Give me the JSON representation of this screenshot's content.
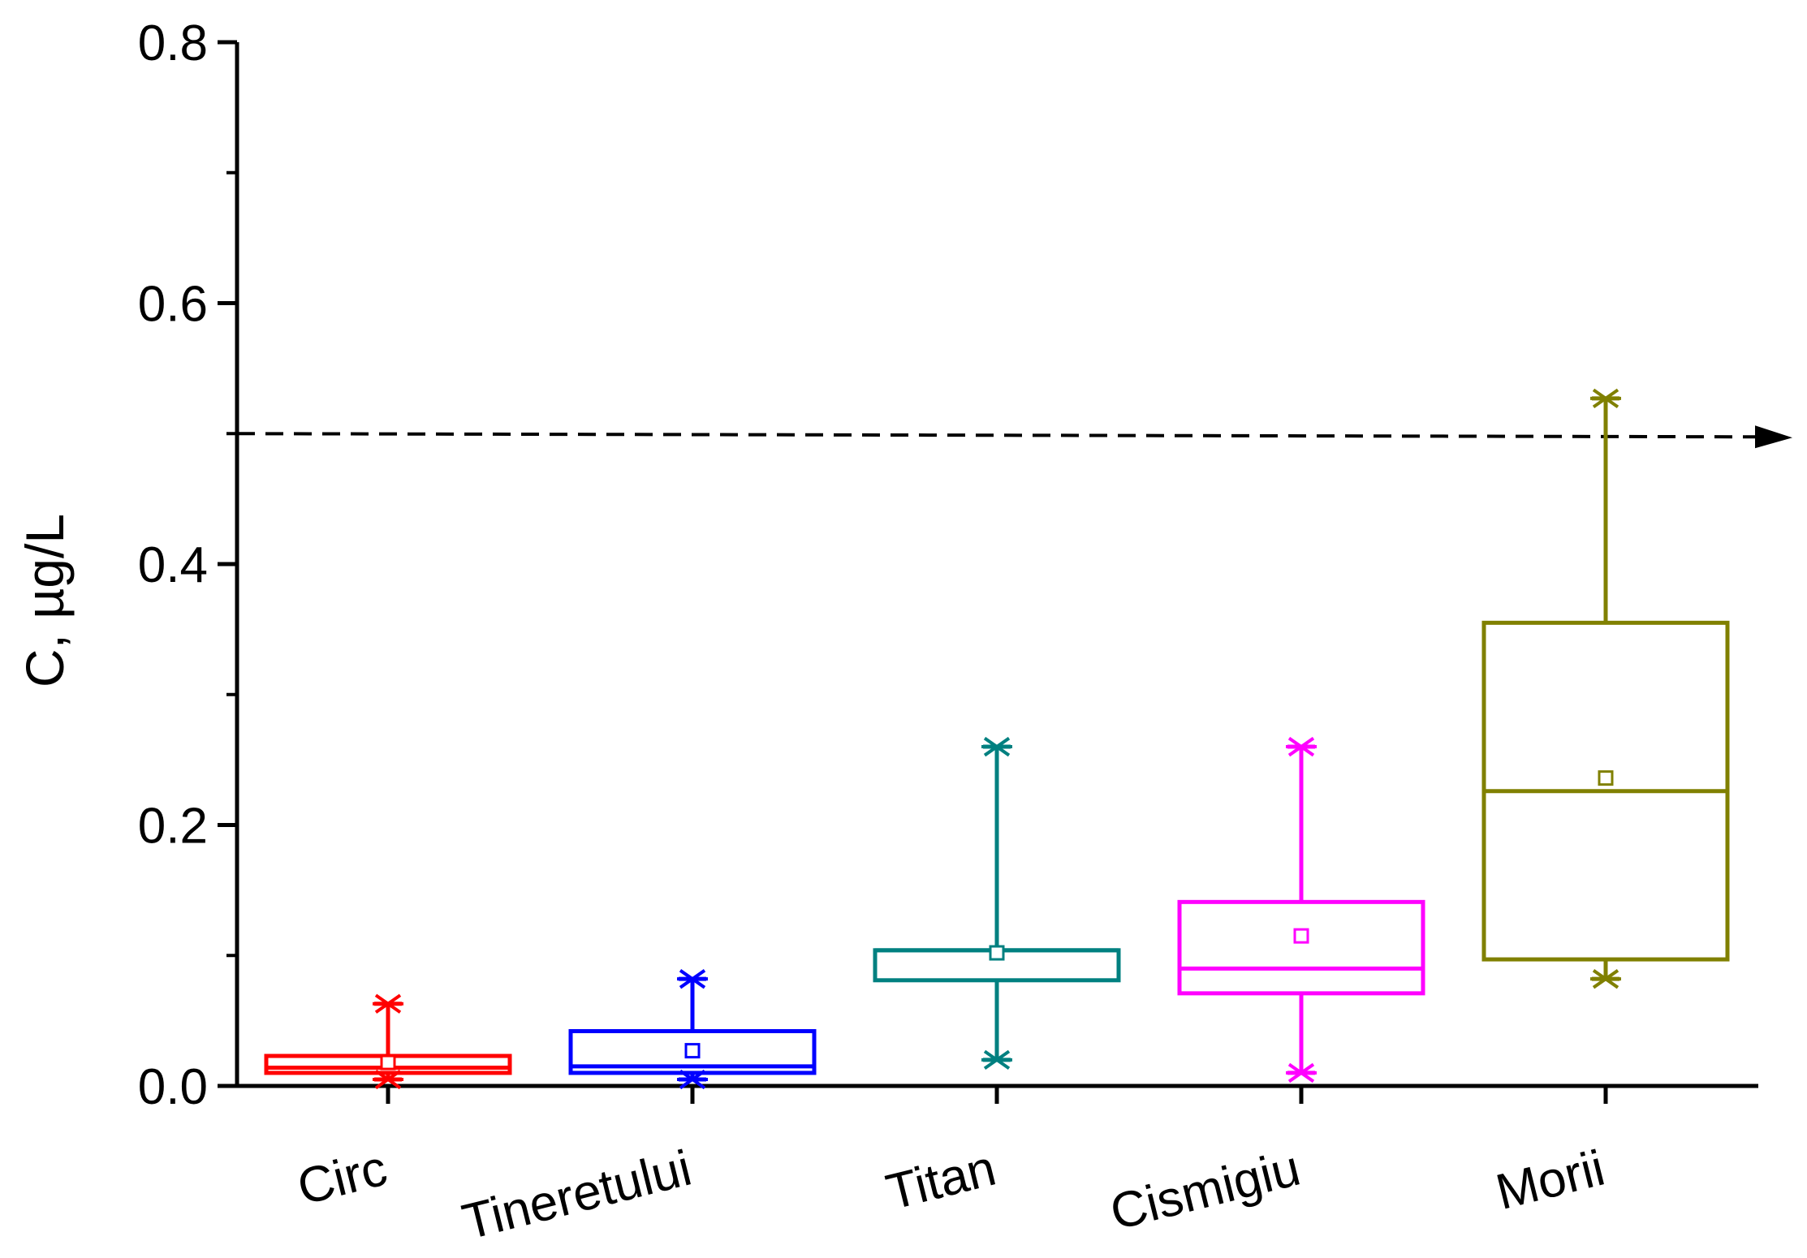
{
  "chart_data": {
    "type": "box",
    "title": "",
    "xlabel": "",
    "ylabel": "C, µg/L",
    "ylim": [
      0,
      0.8
    ],
    "yticks": [
      "0.0",
      "0.2",
      "0.4",
      "0.6",
      "0.8"
    ],
    "minor_yticks": [
      0.1,
      0.3,
      0.5,
      0.7
    ],
    "grid": false,
    "legend": "none",
    "reference_line": {
      "y": 0.5,
      "style": "dashed",
      "color": "#000000",
      "arrow": "right"
    },
    "categories": [
      "Circ",
      "Tineretului",
      "Titan",
      "Cismigiu",
      "Morii"
    ],
    "boxes": [
      {
        "name": "Circ",
        "color": "#ff0000",
        "min": 0.005,
        "q1": 0.01,
        "median": 0.014,
        "q3": 0.023,
        "max": 0.063,
        "mean": 0.018
      },
      {
        "name": "Tineretului",
        "color": "#0000ff",
        "min": 0.005,
        "q1": 0.01,
        "median": 0.015,
        "q3": 0.042,
        "max": 0.082,
        "mean": 0.027
      },
      {
        "name": "Titan",
        "color": "#008080",
        "min": 0.02,
        "q1": 0.081,
        "median": 0.104,
        "q3": 0.104,
        "max": 0.26,
        "mean": 0.102
      },
      {
        "name": "Cismigiu",
        "color": "#ff00ff",
        "min": 0.01,
        "q1": 0.071,
        "median": 0.09,
        "q3": 0.141,
        "max": 0.26,
        "mean": 0.115
      },
      {
        "name": "Morii",
        "color": "#808000",
        "min": 0.082,
        "q1": 0.097,
        "median": 0.226,
        "q3": 0.355,
        "max": 0.527,
        "mean": 0.236
      }
    ]
  }
}
